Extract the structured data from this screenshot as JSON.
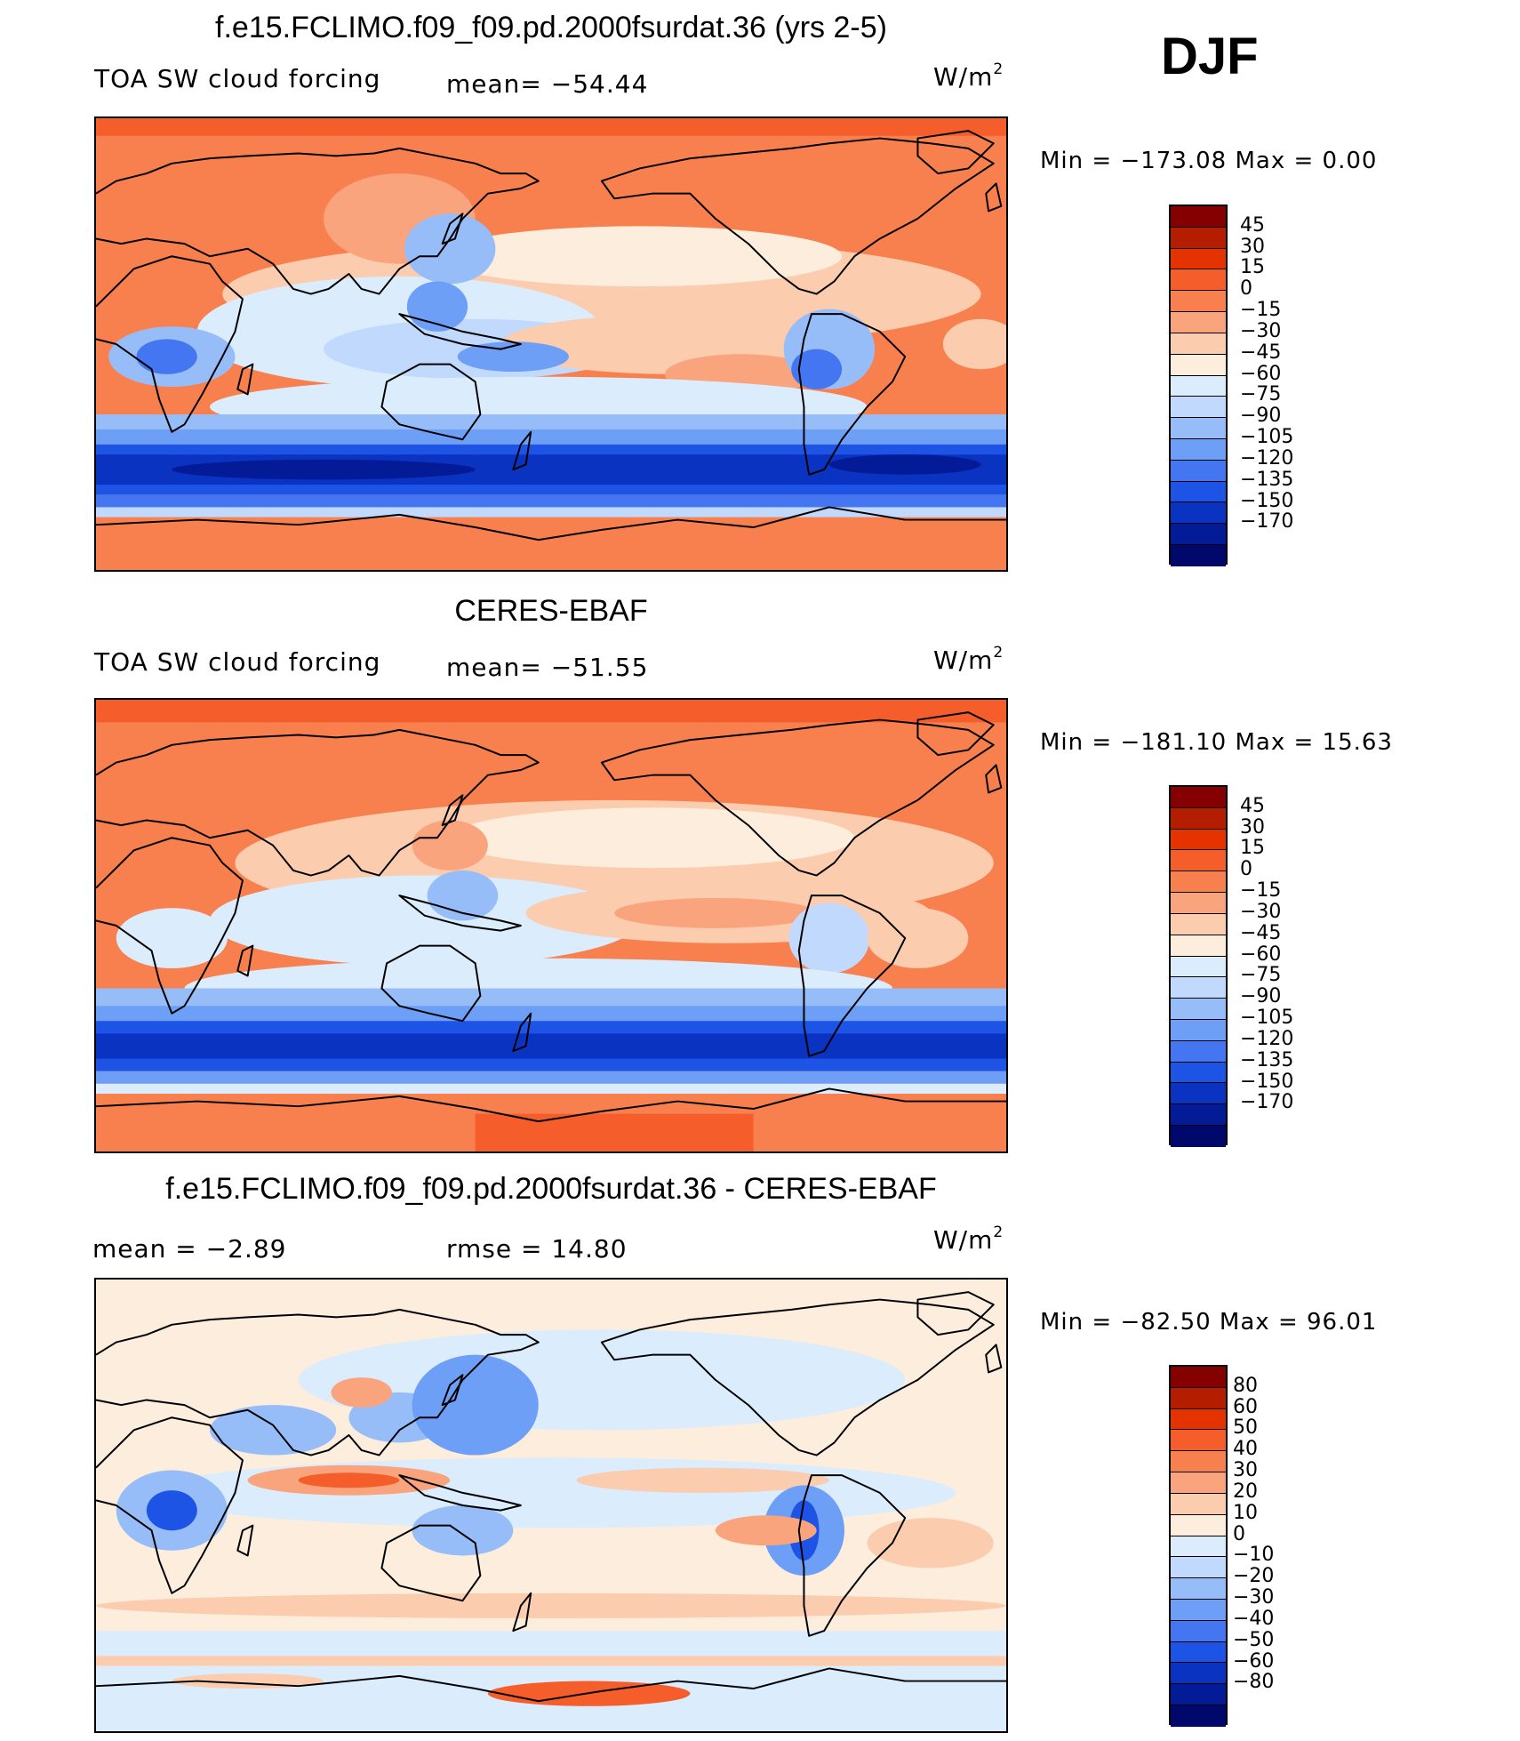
{
  "season": "DJF",
  "units_main": "W/m",
  "units_sup": "2",
  "panels": [
    {
      "title": "f.e15.FCLIMO.f09_f09.pd.2000fsurdat.36 (yrs 2-5)",
      "field": "TOA SW cloud forcing",
      "stat": "mean= −54.44",
      "minmax": "Min = −173.08 Max =    0.00",
      "levels": [
        "45",
        "30",
        "15",
        "0",
        "−15",
        "−30",
        "−45",
        "−60",
        "−75",
        "−90",
        "−105",
        "−120",
        "−135",
        "−150",
        "−170"
      ],
      "colors": [
        "#850000",
        "#b51d00",
        "#e53300",
        "#f55d2b",
        "#f8804f",
        "#f9a47d",
        "#fcccaf",
        "#fdeddd",
        "#dbecfd",
        "#c0d9fc",
        "#97bdf9",
        "#6c9ff5",
        "#4376f0",
        "#1e54e6",
        "#0a33c2",
        "#041b97",
        "#00086b"
      ]
    },
    {
      "title": "CERES-EBAF",
      "field": "TOA SW cloud forcing",
      "stat": "mean= −51.55",
      "minmax": "Min = −181.10 Max =   15.63",
      "levels": [
        "45",
        "30",
        "15",
        "0",
        "−15",
        "−30",
        "−45",
        "−60",
        "−75",
        "−90",
        "−105",
        "−120",
        "−135",
        "−150",
        "−170"
      ],
      "colors": [
        "#850000",
        "#b51d00",
        "#e53300",
        "#f55d2b",
        "#f8804f",
        "#f9a47d",
        "#fcccaf",
        "#fdeddd",
        "#dbecfd",
        "#c0d9fc",
        "#97bdf9",
        "#6c9ff5",
        "#4376f0",
        "#1e54e6",
        "#0a33c2",
        "#041b97",
        "#00086b"
      ]
    },
    {
      "title": "f.e15.FCLIMO.f09_f09.pd.2000fsurdat.36 - CERES-EBAF",
      "field": "mean =   −2.89",
      "stat": "rmse =   14.80",
      "minmax": "Min = −82.50 Max =   96.01",
      "levels": [
        "80",
        "60",
        "50",
        "40",
        "30",
        "20",
        "10",
        "0",
        "−10",
        "−20",
        "−30",
        "−40",
        "−50",
        "−60",
        "−80"
      ],
      "colors": [
        "#850000",
        "#b51d00",
        "#e53300",
        "#f55d2b",
        "#f8804f",
        "#f9a47d",
        "#fcccaf",
        "#fdeddd",
        "#dbecfd",
        "#c0d9fc",
        "#97bdf9",
        "#6c9ff5",
        "#4376f0",
        "#1e54e6",
        "#0a33c2",
        "#041b97",
        "#00086b"
      ]
    }
  ]
}
